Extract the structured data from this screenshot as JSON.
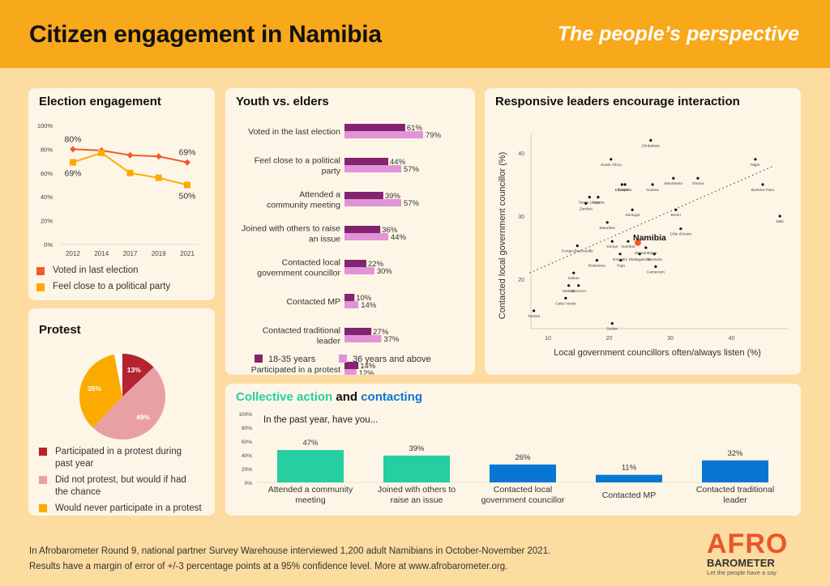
{
  "header": {
    "title": "Citizen engagement in Namibia",
    "subtitle": "The people’s perspective",
    "background_color": "#f7a81b"
  },
  "footer": {
    "line1": "In Afrobarometer Round 9, national partner Survey Warehouse interviewed 1,200 adult Namibians in October-November 2021.",
    "line2": "Results have a margin of error of +/-3 percentage points at a 95% confidence level. More at www.afrobarometer.org."
  },
  "logo": {
    "text": "AFRO",
    "subtext": "BAROMETER",
    "tagline": "Let the people have a say"
  },
  "chart_data": [
    {
      "id": "election",
      "type": "line",
      "title": "Election engagement",
      "x": [
        "2012",
        "2014",
        "2017",
        "2019",
        "2021"
      ],
      "ylim": [
        0,
        100
      ],
      "yticks": [
        "0%",
        "20%",
        "40%",
        "60%",
        "80%",
        "100%"
      ],
      "series": [
        {
          "name": "Voted in last election",
          "color": "#ef5b2b",
          "values": [
            80,
            79,
            75,
            74,
            69
          ],
          "labels": {
            "0": "80%",
            "4": "69%"
          }
        },
        {
          "name": "Feel close to a political party",
          "color": "#fbab00",
          "values": [
            69,
            77,
            60,
            56,
            50
          ],
          "labels": {
            "0": "69%",
            "4": "50%"
          }
        }
      ]
    },
    {
      "id": "youth",
      "type": "bar",
      "orientation": "horizontal",
      "title": "Youth vs. elders",
      "categories": [
        "Voted in the last election",
        "Feel close to a political party",
        "Attended a community meeting",
        "Joined with others to raise an issue",
        "Contacted local government councillor",
        "Contacted MP",
        "Contacted traditional leader",
        "Participated in a protest"
      ],
      "category_lines": [
        [
          "Voted in the last election"
        ],
        [
          "Feel close to a political",
          "party"
        ],
        [
          "Attended a",
          "community meeting"
        ],
        [
          "Joined with others to raise",
          "an issue"
        ],
        [
          "Contacted local",
          "government councillor"
        ],
        [
          "Contacted MP"
        ],
        [
          "Contacted traditional",
          "leader"
        ],
        [
          "Participated in a protest"
        ]
      ],
      "series": [
        {
          "name": "18-35 years",
          "color": "#82246f",
          "values": [
            61,
            44,
            39,
            36,
            22,
            10,
            27,
            14
          ]
        },
        {
          "name": "36 years and above",
          "color": "#e293d8",
          "values": [
            79,
            57,
            57,
            44,
            30,
            14,
            37,
            12
          ]
        }
      ]
    },
    {
      "id": "scatter",
      "type": "scatter",
      "title": "Responsive leaders encourage interaction",
      "xlabel": "Local government councillors often/always listen (%)",
      "ylabel": "Contacted local government councillor (%)",
      "xticks": [
        10,
        20,
        30,
        40
      ],
      "yticks": [
        20,
        30,
        40
      ],
      "xlim": [
        6,
        49
      ],
      "ylim": [
        12,
        44
      ],
      "trendline": {
        "x1": 7,
        "y1": 21,
        "x2": 47,
        "y2": 38
      },
      "highlight": "Namibia",
      "highlight_color": "#ef5b2b",
      "points": [
        {
          "label": "Zimbabwe",
          "x": 26.8,
          "y": 42
        },
        {
          "label": "South Africa",
          "x": 20.3,
          "y": 39
        },
        {
          "label": "Ethiopia",
          "x": 22.1,
          "y": 35
        },
        {
          "label": "Lesotho",
          "x": 22.6,
          "y": 35
        },
        {
          "label": "Guinea",
          "x": 27.1,
          "y": 35
        },
        {
          "label": "Mauritania",
          "x": 30.5,
          "y": 36
        },
        {
          "label": "Ghana",
          "x": 34.5,
          "y": 36
        },
        {
          "label": "Niger",
          "x": 43.9,
          "y": 39
        },
        {
          "label": "Burkina Faso",
          "x": 45.1,
          "y": 35
        },
        {
          "label": "Mali",
          "x": 47.9,
          "y": 30
        },
        {
          "label": "Sierra Leone",
          "x": 16.8,
          "y": 33
        },
        {
          "label": "Nigeria",
          "x": 18.2,
          "y": 33
        },
        {
          "label": "Zambia",
          "x": 16.2,
          "y": 32
        },
        {
          "label": "Senegal",
          "x": 23.8,
          "y": 31
        },
        {
          "label": "Benin",
          "x": 30.9,
          "y": 31
        },
        {
          "label": "Mauritius",
          "x": 19.7,
          "y": 29
        },
        {
          "label": "Côte d'Ivoire",
          "x": 31.7,
          "y": 28
        },
        {
          "label": "Kenya",
          "x": 20.5,
          "y": 26
        },
        {
          "label": "Gambia",
          "x": 23.1,
          "y": 26
        },
        {
          "label": "Namibia",
          "x": 24.7,
          "y": 25.8
        },
        {
          "label": "Mozambique",
          "x": 26,
          "y": 25
        },
        {
          "label": "Congo-Brazzaville",
          "x": 14.8,
          "y": 25.3
        },
        {
          "label": "Eswatini",
          "x": 21.8,
          "y": 24
        },
        {
          "label": "Madagascar",
          "x": 25,
          "y": 24
        },
        {
          "label": "Tanzania",
          "x": 27.4,
          "y": 24
        },
        {
          "label": "Botswana",
          "x": 18,
          "y": 23
        },
        {
          "label": "Togo",
          "x": 21.9,
          "y": 23
        },
        {
          "label": "Cameroon",
          "x": 27.6,
          "y": 22
        },
        {
          "label": "Gabon",
          "x": 14.2,
          "y": 21
        },
        {
          "label": "Malawi",
          "x": 13.4,
          "y": 19
        },
        {
          "label": "Morocco",
          "x": 15,
          "y": 19
        },
        {
          "label": "Cabo Verde",
          "x": 12.9,
          "y": 17
        },
        {
          "label": "Tunisia",
          "x": 7.7,
          "y": 15
        },
        {
          "label": "Sudan",
          "x": 20.5,
          "y": 13
        }
      ]
    },
    {
      "id": "protest",
      "type": "pie",
      "title": "Protest",
      "slices": [
        {
          "name": "Participated in a protest during past year",
          "value": 13,
          "label": "13%",
          "color": "#b5232f"
        },
        {
          "name": "Did not protest, but would if had the chance",
          "value": 49,
          "label": "49%",
          "color": "#e8a0a5"
        },
        {
          "name": "Would never participate in a protest",
          "value": 35,
          "label": "35%",
          "color": "#fbab00"
        },
        {
          "name": "Other",
          "value": 3,
          "label": "",
          "color": "#ffffff"
        }
      ],
      "legend": [
        {
          "lines": [
            "Participated in a protest during",
            "past year"
          ],
          "color": "#b5232f"
        },
        {
          "lines": [
            "Did not protest, but would if had",
            "the chance"
          ],
          "color": "#e8a0a5"
        },
        {
          "lines": [
            "Would never participate in a protest"
          ],
          "color": "#fbab00"
        }
      ]
    },
    {
      "id": "collective",
      "type": "bar",
      "title_parts": [
        {
          "text": "Collective action",
          "color": "#26cfa1"
        },
        {
          "text": " and ",
          "color": "#111111"
        },
        {
          "text": "contacting",
          "color": "#0877d3"
        }
      ],
      "subtitle": "In the past year, have you...",
      "ylim": [
        0,
        100
      ],
      "yticks": [
        "0%",
        "20%",
        "40%",
        "60%",
        "80%",
        "100%"
      ],
      "categories": [
        [
          "Attended a community",
          "meeting"
        ],
        [
          "Joined with others to",
          "raise an issue"
        ],
        [
          "Contacted local",
          "government councillor"
        ],
        [
          "Contacted MP"
        ],
        [
          "Contacted traditional",
          "leader"
        ]
      ],
      "values": [
        47,
        39,
        26,
        11,
        32
      ],
      "labels": [
        "47%",
        "39%",
        "26%",
        "11%",
        "32%"
      ],
      "colors": [
        "#26cfa1",
        "#26cfa1",
        "#0877d3",
        "#0877d3",
        "#0877d3"
      ]
    }
  ]
}
